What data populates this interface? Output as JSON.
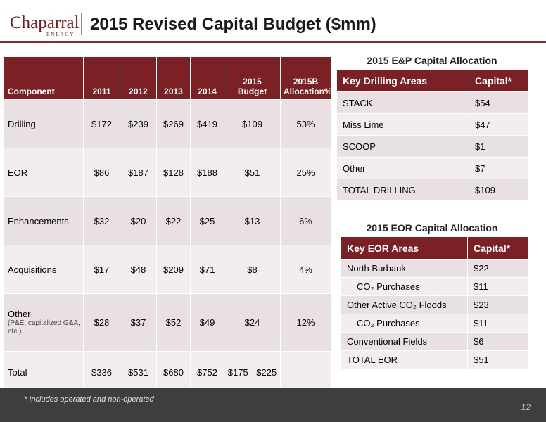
{
  "header": {
    "logo_name": "Chaparral",
    "logo_sub": "ENERGY",
    "title": "2015 Revised Capital Budget ($mm)"
  },
  "budget_table": {
    "columns": [
      "Component",
      "2011",
      "2012",
      "2013",
      "2014",
      "2015 Budget",
      "2015B Allocation%"
    ],
    "rows": [
      {
        "component": "Drilling",
        "note": "",
        "cells": [
          "$172",
          "$239",
          "$269",
          "$419",
          "$109",
          "53%"
        ]
      },
      {
        "component": "EOR",
        "note": "",
        "cells": [
          "$86",
          "$187",
          "$128",
          "$188",
          "$51",
          "25%"
        ]
      },
      {
        "component": "Enhancements",
        "note": "",
        "cells": [
          "$32",
          "$20",
          "$22",
          "$25",
          "$13",
          "6%"
        ]
      },
      {
        "component": "Acquisitions",
        "note": "",
        "cells": [
          "$17",
          "$48",
          "$209",
          "$71",
          "$8",
          "4%"
        ]
      },
      {
        "component": "Other",
        "note": "(P&E, capitalized G&A, etc.)",
        "cells": [
          "$28",
          "$37",
          "$52",
          "$49",
          "$24",
          "12%"
        ]
      },
      {
        "component": "Total",
        "note": "",
        "cells": [
          "$336",
          "$531",
          "$680",
          "$752",
          "$175 - $225",
          ""
        ]
      }
    ]
  },
  "ep_allocation": {
    "title": "2015 E&P Capital Allocation",
    "columns": [
      "Key Drilling Areas",
      "Capital*"
    ],
    "rows": [
      {
        "area": "STACK",
        "capital": "$54"
      },
      {
        "area": "Miss Lime",
        "capital": "$47"
      },
      {
        "area": "SCOOP",
        "capital": "$1"
      },
      {
        "area": "Other",
        "capital": "$7"
      },
      {
        "area": "TOTAL DRILLING",
        "capital": "$109"
      }
    ]
  },
  "eor_allocation": {
    "title": "2015 EOR Capital Allocation",
    "columns": [
      "Key EOR Areas",
      "Capital*"
    ],
    "rows": [
      {
        "area": "North Burbank",
        "capital": "$22"
      },
      {
        "area": "CO₂ Purchases",
        "capital": "$11"
      },
      {
        "area": "Other Active CO₂ Floods",
        "capital": "$23"
      },
      {
        "area": "CO₂ Purchases",
        "capital": "$11"
      },
      {
        "area": "Conventional Fields",
        "capital": "$6"
      },
      {
        "area": "TOTAL EOR",
        "capital": "$51"
      }
    ]
  },
  "footer": {
    "footnote": "* Includes operated and non-operated",
    "page_number": "12"
  },
  "colors": {
    "accent": "#7b2125",
    "row_dark": "#e9e1e1",
    "row_light": "#f2eeee",
    "footer_bg": "#3e3e3e"
  }
}
